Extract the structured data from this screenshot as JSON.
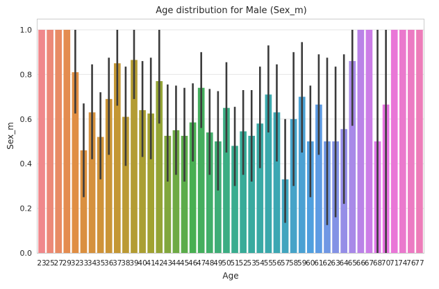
{
  "chart_data": {
    "type": "bar",
    "title": "Age distribution for Male (Sex_m)",
    "xlabel": "Age",
    "ylabel": "Sex_m",
    "ylim": [
      0,
      1.0
    ],
    "yticks": [
      "0.0",
      "0.2",
      "0.4",
      "0.6",
      "0.8",
      "1.0"
    ],
    "grid": "horizontal",
    "categories": [
      "23",
      "25",
      "27",
      "29",
      "32",
      "33",
      "34",
      "35",
      "36",
      "37",
      "38",
      "39",
      "40",
      "41",
      "42",
      "43",
      "44",
      "45",
      "46",
      "47",
      "48",
      "49",
      "50",
      "51",
      "52",
      "53",
      "54",
      "55",
      "56",
      "57",
      "58",
      "59",
      "60",
      "61",
      "62",
      "63",
      "64",
      "65",
      "66",
      "67",
      "68",
      "70",
      "71",
      "74",
      "76",
      "77"
    ],
    "values": [
      1.0,
      1.0,
      1.0,
      1.0,
      0.81,
      0.46,
      0.63,
      0.52,
      0.69,
      0.85,
      0.61,
      0.865,
      0.64,
      0.625,
      0.77,
      0.525,
      0.55,
      0.525,
      0.585,
      0.74,
      0.54,
      0.5,
      0.65,
      0.48,
      0.545,
      0.525,
      0.58,
      0.71,
      0.63,
      0.33,
      0.6,
      0.7,
      0.5,
      0.665,
      0.5,
      0.5,
      0.555,
      0.86,
      1.0,
      1.0,
      0.5,
      0.665,
      1.0,
      1.0,
      1.0,
      1.0
    ],
    "ci_low": [
      1.0,
      1.0,
      1.0,
      1.0,
      0.625,
      0.25,
      0.42,
      0.33,
      0.44,
      0.66,
      0.39,
      0.69,
      0.43,
      0.42,
      0.58,
      0.32,
      0.35,
      0.32,
      0.41,
      0.56,
      0.35,
      0.28,
      0.45,
      0.3,
      0.35,
      0.32,
      0.38,
      0.54,
      0.41,
      0.135,
      0.3,
      0.45,
      0.25,
      0.44,
      0.125,
      0.16,
      0.22,
      0.57,
      1.0,
      1.0,
      0.0,
      0.0,
      1.0,
      1.0,
      1.0,
      1.0
    ],
    "ci_high": [
      1.0,
      1.0,
      1.0,
      1.0,
      1.0,
      0.67,
      0.845,
      0.72,
      0.875,
      1.0,
      0.835,
      1.0,
      0.86,
      0.875,
      1.0,
      0.755,
      0.75,
      0.74,
      0.76,
      0.9,
      0.735,
      0.725,
      0.855,
      0.655,
      0.73,
      0.73,
      0.835,
      0.93,
      0.845,
      0.6,
      0.9,
      0.945,
      0.75,
      0.89,
      0.875,
      0.835,
      0.89,
      1.0,
      1.0,
      1.0,
      1.0,
      1.0,
      1.0,
      1.0,
      1.0,
      1.0
    ]
  }
}
